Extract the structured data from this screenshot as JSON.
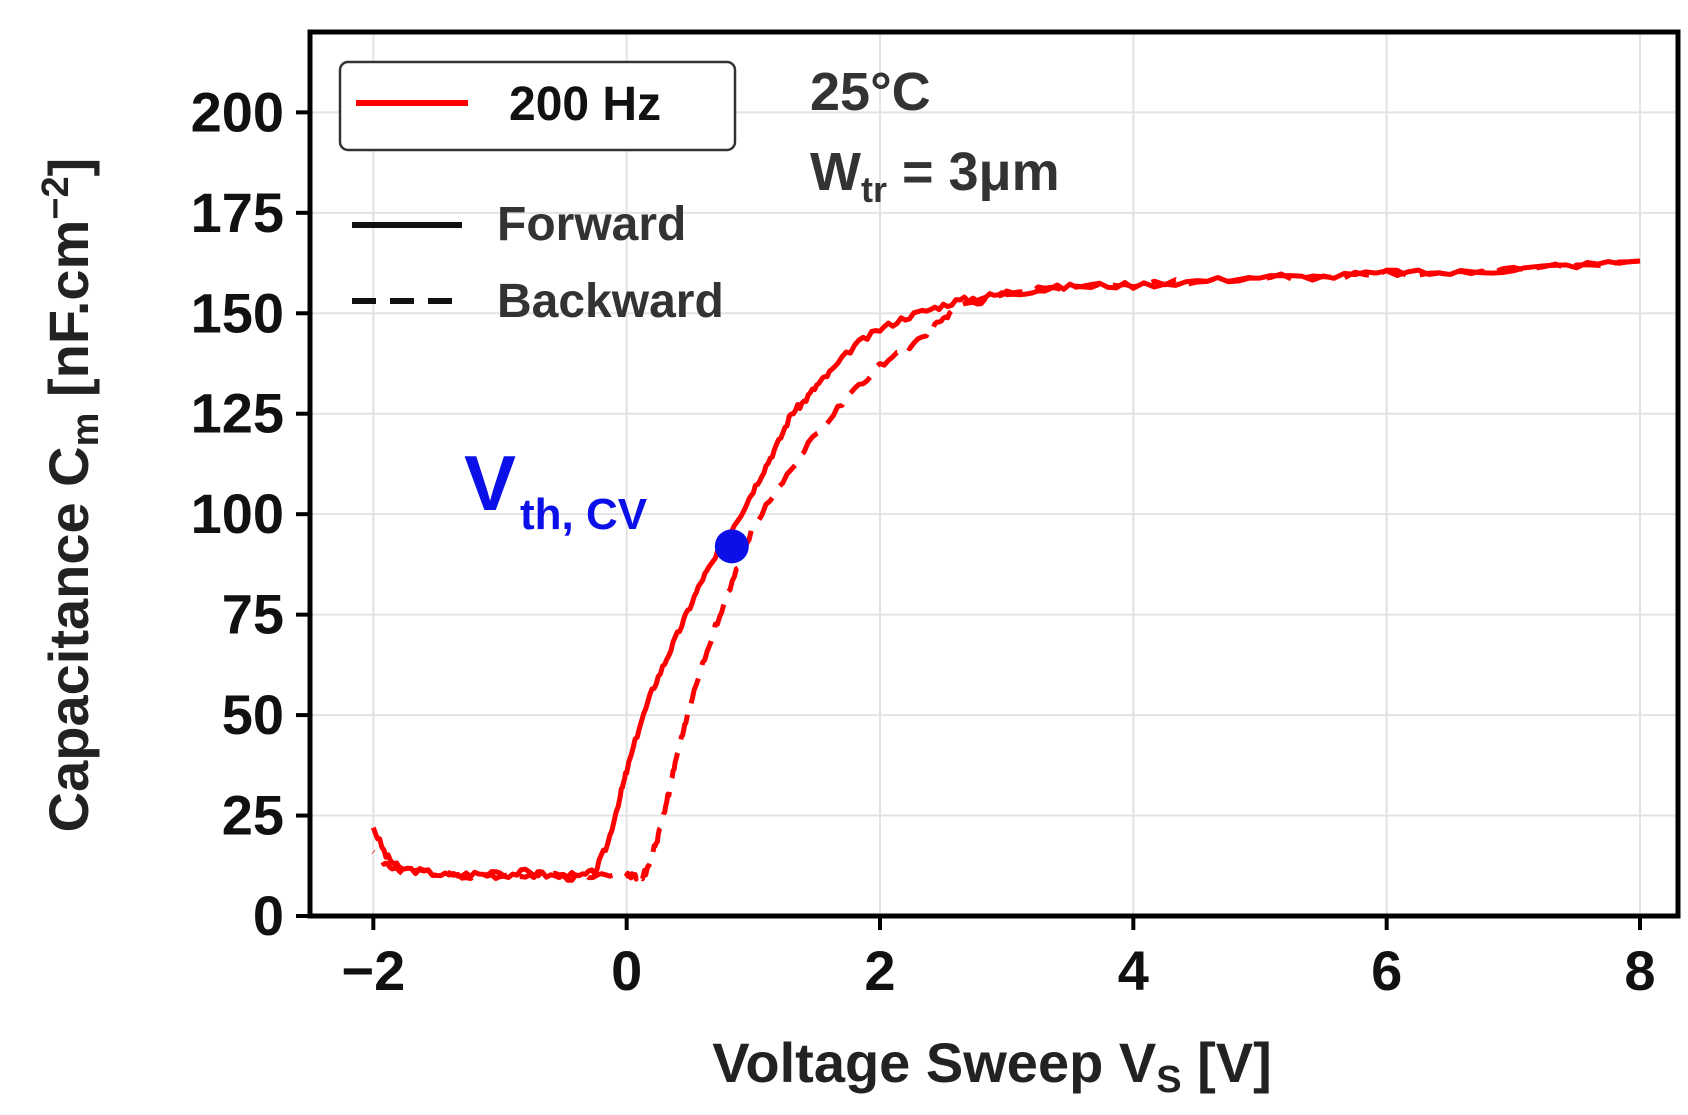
{
  "chart_data": {
    "type": "line",
    "title": "",
    "xlabel": {
      "main": "Voltage Sweep  V",
      "sub": "S",
      "unit": " [V]"
    },
    "ylabel": {
      "main": "Capacitance  C",
      "sub": "m",
      "unit": " [nF.cm",
      "sup": "−2",
      "close": "]"
    },
    "xlim": [
      -2.5,
      8.3
    ],
    "ylim": [
      0,
      220
    ],
    "xticks": [
      -2,
      0,
      2,
      4,
      6,
      8
    ],
    "xtick_labels": [
      "−2",
      "0",
      "2",
      "4",
      "6",
      "8"
    ],
    "yticks": [
      0,
      25,
      50,
      75,
      100,
      125,
      150,
      175,
      200
    ],
    "ytick_labels": [
      "0",
      "25",
      "50",
      "75",
      "100",
      "125",
      "150",
      "175",
      "200"
    ],
    "grid": true,
    "legend": {
      "placement": "top-left",
      "series_label": "200 Hz",
      "style_entries": [
        {
          "label": "Forward",
          "style": "solid"
        },
        {
          "label": "Backward",
          "style": "dashed"
        }
      ]
    },
    "annotations": {
      "temperature": "25°C",
      "width_main": "W",
      "width_sub": "tr",
      "width_value": " = 3μm",
      "vth_main": "V",
      "vth_sub": "th, CV"
    },
    "vth_point": {
      "x": 0.83,
      "y": 92
    },
    "series": [
      {
        "name": "Forward",
        "color": "#ff0000",
        "style": "solid",
        "x": [
          -2.0,
          -1.9,
          -1.8,
          -1.6,
          -1.4,
          -1.2,
          -1.0,
          -0.8,
          -0.6,
          -0.4,
          -0.25,
          -0.15,
          -0.05,
          0.0,
          0.1,
          0.2,
          0.3,
          0.4,
          0.5,
          0.6,
          0.7,
          0.8,
          0.9,
          1.0,
          1.1,
          1.2,
          1.3,
          1.4,
          1.5,
          1.6,
          1.8,
          2.0,
          2.2,
          2.4,
          2.6,
          2.8,
          3.0,
          3.3,
          3.6,
          4.0,
          4.5,
          5.0,
          5.5,
          6.0,
          6.5,
          7.0,
          7.5,
          8.0
        ],
        "y": [
          22,
          15,
          12,
          11,
          10,
          10.5,
          10,
          11,
          10,
          9.5,
          11,
          18,
          30,
          36,
          47,
          56,
          63,
          70,
          77,
          84,
          89,
          95,
          100,
          106,
          112,
          118,
          125,
          128,
          132,
          135,
          142,
          146,
          149,
          151,
          153,
          154,
          155,
          156,
          157,
          157,
          158,
          159,
          159,
          160,
          160,
          161,
          162,
          163
        ]
      },
      {
        "name": "Backward",
        "color": "#ff0000",
        "style": "dashed",
        "x": [
          8.0,
          7.5,
          7.0,
          6.5,
          6.0,
          5.5,
          5.0,
          4.5,
          4.0,
          3.6,
          3.3,
          3.0,
          2.8,
          2.6,
          2.5,
          2.4,
          2.2,
          2.0,
          1.8,
          1.6,
          1.4,
          1.2,
          1.0,
          0.9,
          0.8,
          0.7,
          0.6,
          0.5,
          0.45,
          0.4,
          0.35,
          0.3,
          0.25,
          0.2,
          0.15,
          0.1,
          0.05,
          0.0,
          -0.2,
          -0.4,
          -0.6,
          -0.8,
          -1.0,
          -1.2,
          -1.4,
          -1.6,
          -1.8,
          -1.9,
          -2.0
        ],
        "y": [
          163,
          162,
          161,
          160,
          160,
          159,
          159,
          158,
          157,
          157,
          156,
          155,
          153,
          151,
          149,
          146,
          141,
          137,
          131,
          124,
          116,
          107,
          97,
          89,
          80,
          72,
          63,
          52,
          46,
          40,
          33,
          26,
          20,
          15,
          11,
          9,
          10,
          10,
          10.5,
          10,
          11,
          10,
          10.5,
          10,
          10,
          11,
          11,
          13,
          16
        ]
      }
    ]
  }
}
